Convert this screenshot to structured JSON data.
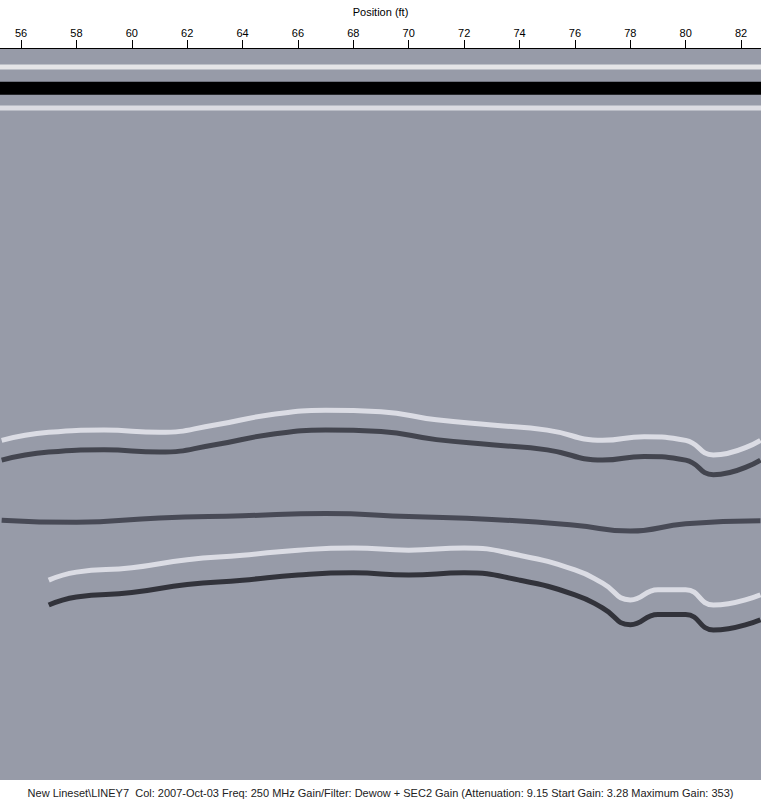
{
  "chart_data": {
    "type": "line",
    "title": "Position (ft)",
    "footer": "New Lineset\\LINEY7  Col: 2007-Oct-03 Freq: 250 MHz Gain/Filter: Dewow + SEC2 Gain (Attenuation: 9.15 Start Gain: 3.28 Maximum Gain: 353)",
    "xlim": [
      55.24,
      82.72
    ],
    "xticks": [
      56,
      58,
      60,
      62,
      64,
      66,
      68,
      70,
      72,
      74,
      76,
      78,
      80,
      82
    ],
    "ylim": [
      0,
      100
    ],
    "tick_labels": "x",
    "grid": false,
    "series": [
      {
        "color": "#f2f2f2",
        "x": [
          55.24,
          60,
          65,
          70,
          75,
          82.72
        ],
        "values": [
          2.6,
          2.6,
          2.6,
          2.6,
          2.6,
          2.6
        ]
      },
      {
        "color": "#000000",
        "x": [
          55.24,
          60,
          65,
          70,
          75,
          82.72
        ],
        "values": [
          5.5,
          5.5,
          5.5,
          5.5,
          5.5,
          5.5
        ]
      },
      {
        "color": "#e8e8ec",
        "x": [
          55.24,
          60,
          65,
          70,
          75,
          82.72
        ],
        "values": [
          8.2,
          8.2,
          8.2,
          8.2,
          8.2,
          8.2
        ]
      },
      {
        "color": "#e6e8ee",
        "x": [
          55.3,
          57,
          59,
          61,
          63,
          65,
          67,
          69,
          71,
          73,
          75,
          77,
          78.5,
          80,
          81,
          82.7
        ],
        "values": [
          53.6,
          52.5,
          52.2,
          52.5,
          51.5,
          50.1,
          49.5,
          49.7,
          50.8,
          51.5,
          52.2,
          53.6,
          53.1,
          53.6,
          55.6,
          53.6
        ]
      },
      {
        "color": "#34363f",
        "x": [
          55.3,
          57,
          59,
          61,
          63,
          65,
          67,
          69,
          71,
          73,
          75,
          77,
          78.5,
          80,
          81,
          82.7
        ],
        "values": [
          56.3,
          55.2,
          54.9,
          55.2,
          54.2,
          52.8,
          52.2,
          52.4,
          53.5,
          54.2,
          54.9,
          56.3,
          55.8,
          56.3,
          58.3,
          56.3
        ]
      },
      {
        "color": "#3a3c48",
        "x": [
          55.3,
          58,
          61,
          64,
          67,
          70,
          73,
          76,
          78,
          80,
          82.7
        ],
        "values": [
          64.5,
          64.8,
          64.2,
          63.9,
          63.6,
          64.0,
          64.4,
          65.2,
          66.0,
          65.0,
          64.6
        ]
      },
      {
        "color": "#e6e8ee",
        "x": [
          57,
          58,
          60,
          62,
          64,
          66,
          68,
          70,
          72,
          74,
          76,
          77,
          78,
          79,
          80,
          81,
          82.7
        ],
        "values": [
          72.7,
          71.6,
          71.0,
          69.9,
          69.3,
          68.6,
          68.3,
          68.6,
          68.3,
          69.3,
          71.3,
          73.1,
          75.4,
          74.0,
          74.0,
          76.1,
          74.7
        ]
      },
      {
        "color": "#202128",
        "x": [
          57,
          58,
          60,
          62,
          64,
          66,
          68,
          70,
          72,
          74,
          76,
          77,
          78,
          79,
          80,
          81,
          82.7
        ],
        "values": [
          76.1,
          75.0,
          74.4,
          73.3,
          72.7,
          72.0,
          71.7,
          72.0,
          71.7,
          72.7,
          74.7,
          76.5,
          78.8,
          77.4,
          77.4,
          79.5,
          78.1
        ]
      }
    ]
  }
}
